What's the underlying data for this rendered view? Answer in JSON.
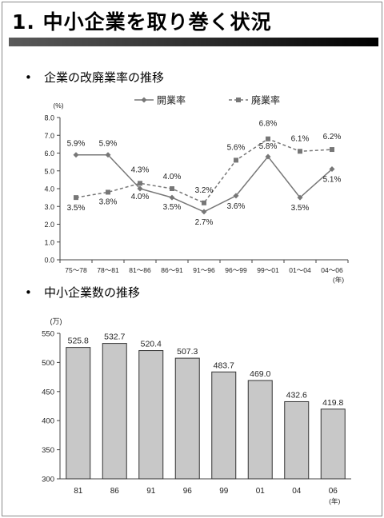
{
  "title": "1. 中小企業を取り巻く状況",
  "sections": [
    {
      "bullet": "•",
      "heading": "企業の改廃業率の推移"
    },
    {
      "bullet": "•",
      "heading": "中小企業数の推移"
    }
  ],
  "colors": {
    "line": "#777777",
    "bar_fill": "#c8c8c8",
    "bar_stroke": "#333333",
    "title_bar": "#1a1a1a"
  },
  "chart_data": [
    {
      "type": "line",
      "unit_label": "(%)",
      "year_label": "(年)",
      "categories": [
        "75～78",
        "78～81",
        "81～86",
        "86～91",
        "91～96",
        "96～99",
        "99～01",
        "01～04",
        "04～06"
      ],
      "ylim": [
        0,
        8
      ],
      "yticks": [
        "0.0",
        "1.0",
        "2.0",
        "3.0",
        "4.0",
        "5.0",
        "6.0",
        "7.0",
        "8.0"
      ],
      "legend_position": "top",
      "series": [
        {
          "name": "開業率",
          "marker": "diamond",
          "line": "solid",
          "values": [
            5.9,
            5.9,
            4.0,
            3.5,
            2.7,
            3.6,
            5.8,
            3.5,
            5.1
          ],
          "labels": [
            "5.9%",
            "5.9%",
            "4.0%",
            "3.5%",
            "2.7%",
            "3.6%",
            "5.8%",
            "3.5%",
            "5.1%"
          ]
        },
        {
          "name": "廃業率",
          "marker": "square",
          "line": "dashed",
          "values": [
            3.5,
            3.8,
            4.3,
            4.0,
            3.2,
            5.6,
            6.8,
            6.1,
            6.2
          ],
          "labels": [
            "3.5%",
            "3.8%",
            "4.3%",
            "4.0%",
            "3.2%",
            "5.6%",
            "6.8%",
            "6.1%",
            "6.2%"
          ]
        }
      ]
    },
    {
      "type": "bar",
      "unit_label": "(万)",
      "year_label": "(年)",
      "categories": [
        "81",
        "86",
        "91",
        "96",
        "99",
        "01",
        "04",
        "06"
      ],
      "values": [
        525.8,
        532.7,
        520.4,
        507.3,
        483.7,
        469.0,
        432.6,
        419.8
      ],
      "labels": [
        "525.8",
        "532.7",
        "520.4",
        "507.3",
        "483.7",
        "469.0",
        "432.6",
        "419.8"
      ],
      "ylim": [
        300,
        550
      ],
      "yticks": [
        "300",
        "350",
        "400",
        "450",
        "500",
        "550"
      ]
    }
  ]
}
